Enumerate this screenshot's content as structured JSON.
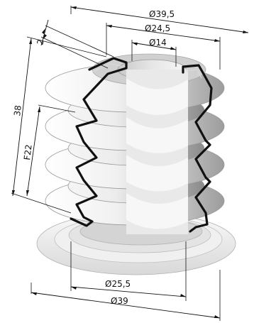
{
  "dimensions": {
    "outer_diameter_top": "Ø39,5",
    "middle_diameter_top": "Ø24,5",
    "inner_diameter_top": "Ø14",
    "wall_thickness": "2",
    "total_height": "38",
    "fold_height": "F22",
    "base_inner_diameter": "Ø25,5",
    "base_outer_diameter": "Ø39"
  },
  "colors": {
    "section_outline": "#111111",
    "body_light": "#f2f2f2",
    "body_mid": "#cfcfcf",
    "body_dark": "#8c8c8c"
  }
}
